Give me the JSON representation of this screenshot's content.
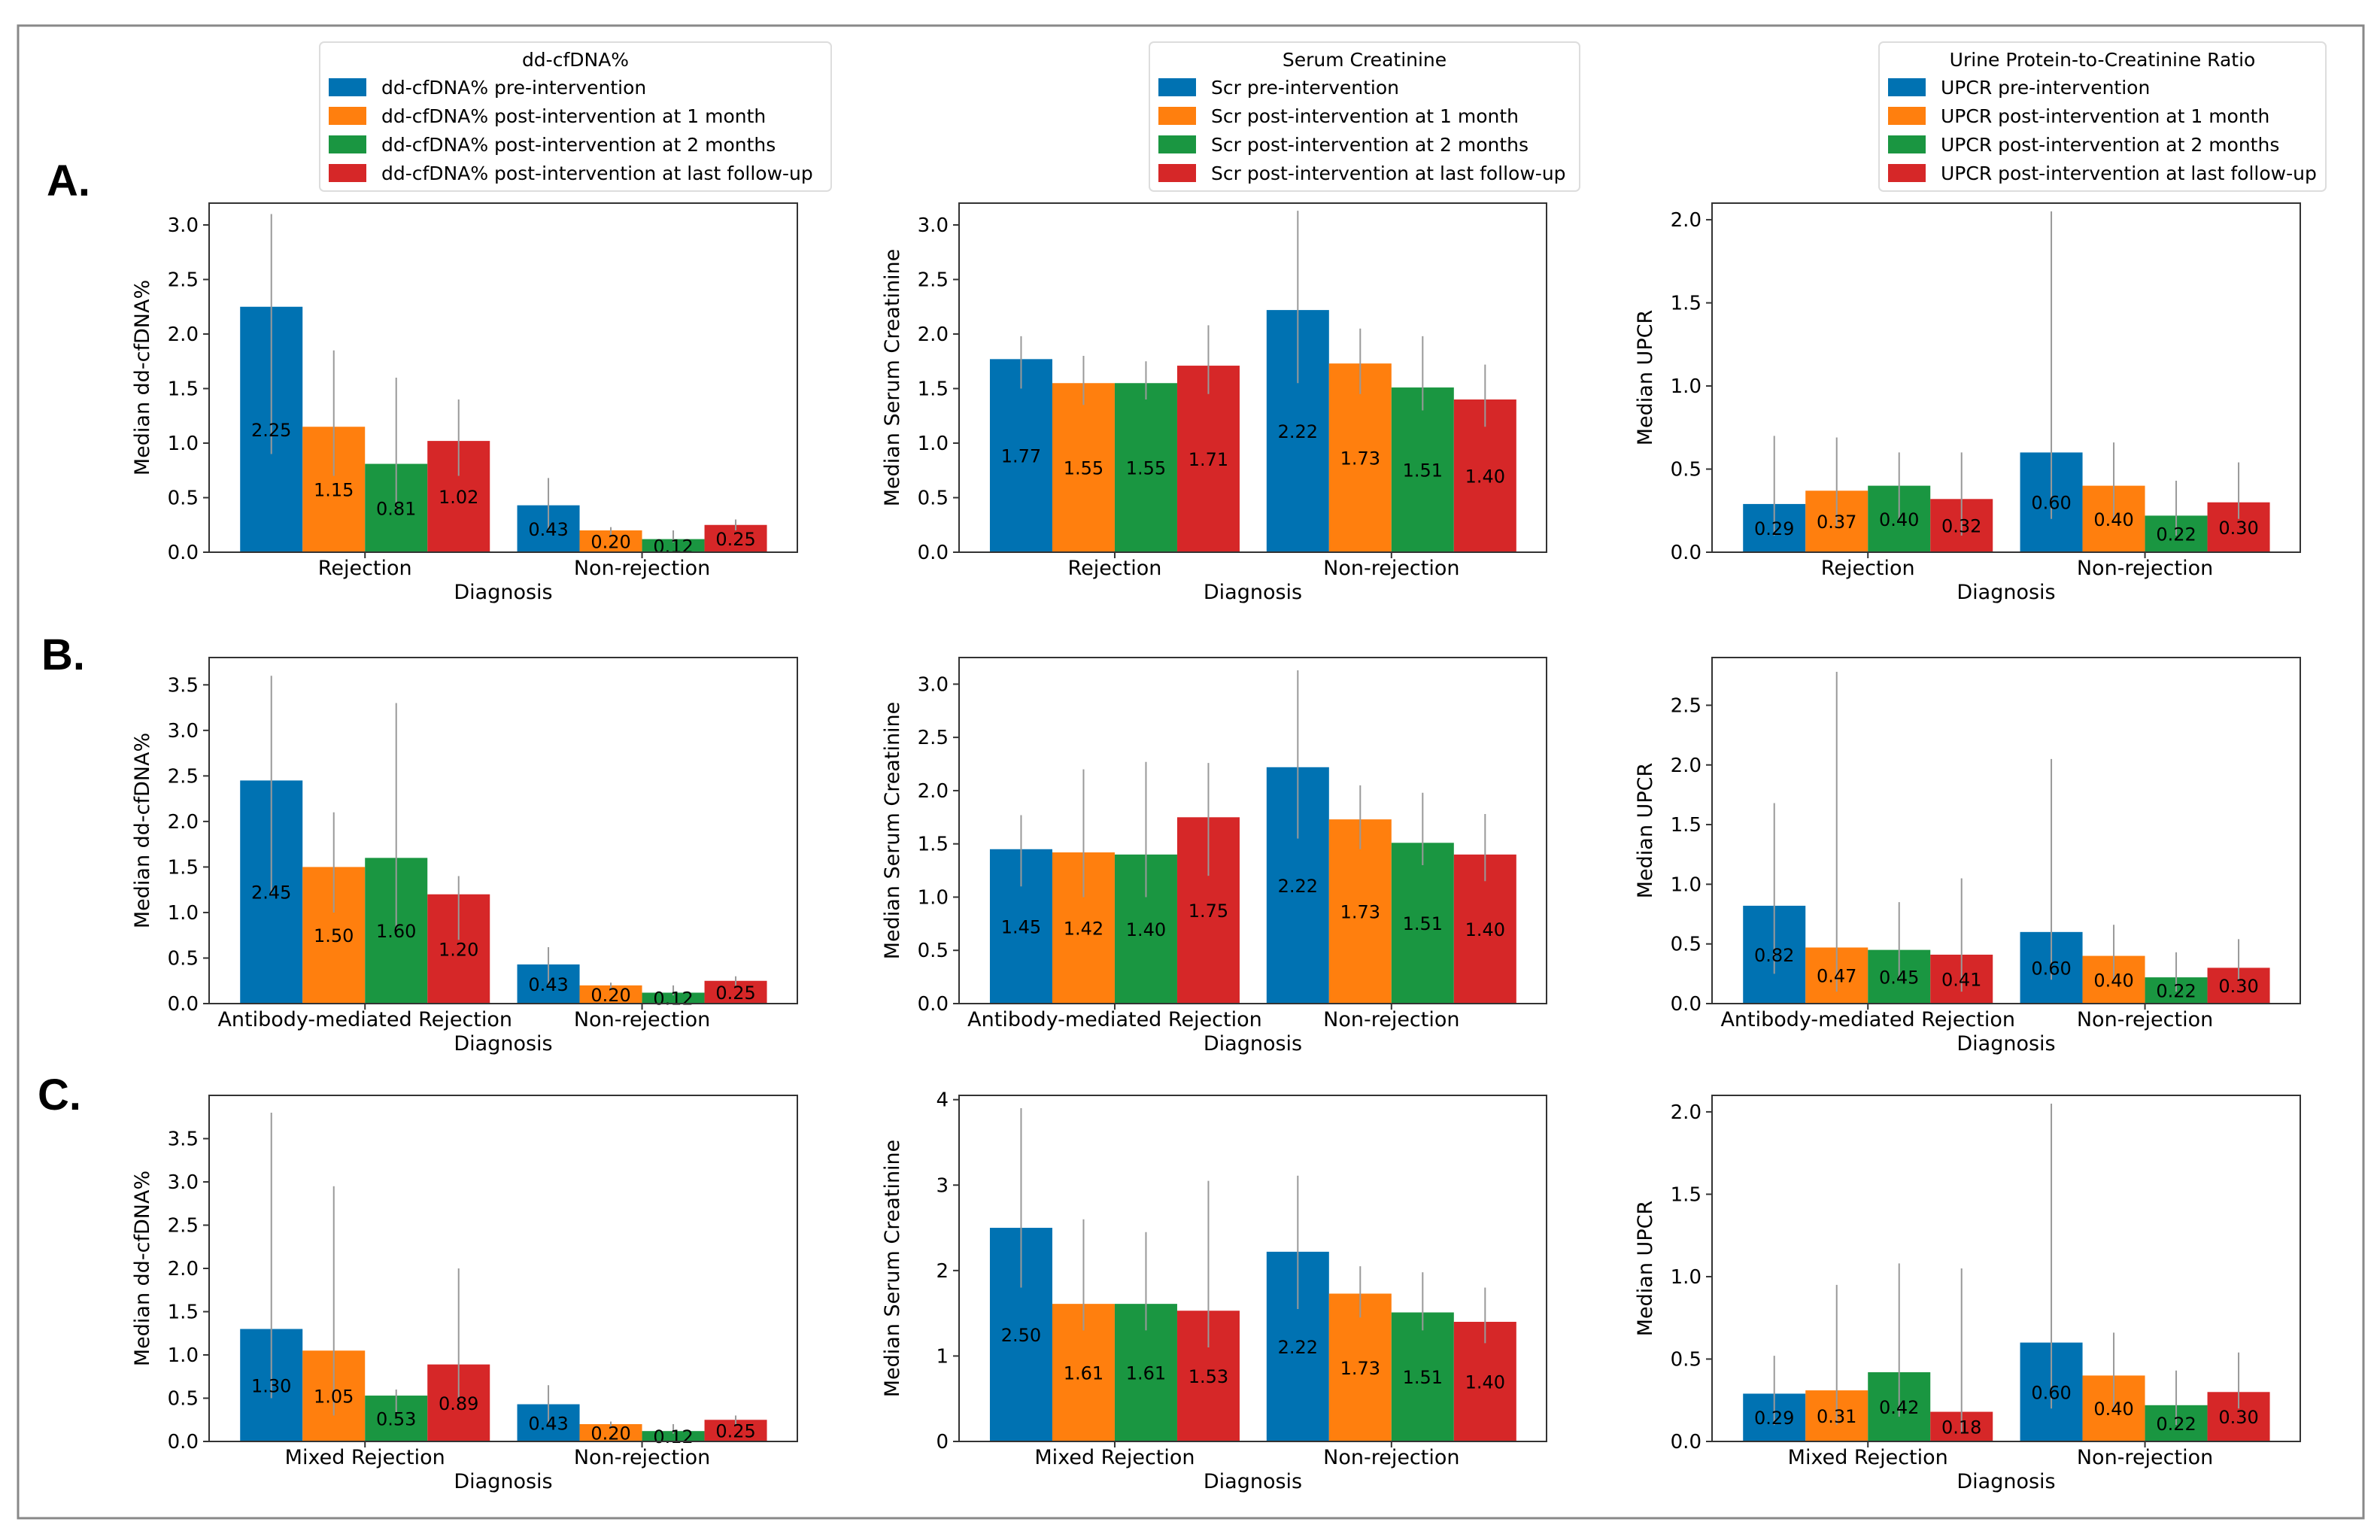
{
  "colors": {
    "pre": "#0072b2",
    "m1": "#ff7f0e",
    "m2": "#1a9641",
    "last": "#d62728",
    "errorbar": "#999999",
    "frame": "#888888"
  },
  "row_labels": [
    "A.",
    "B.",
    "C."
  ],
  "legends": [
    {
      "title": "dd-cfDNA%",
      "items": [
        "dd-cfDNA% pre-intervention",
        "dd-cfDNA% post-intervention at 1 month",
        "dd-cfDNA% post-intervention at 2 months",
        "dd-cfDNA% post-intervention at last follow-up"
      ]
    },
    {
      "title": "Serum Creatinine",
      "items": [
        "Scr pre-intervention",
        "Scr post-intervention at 1 month",
        "Scr post-intervention at 2 months",
        "Scr post-intervention at last follow-up"
      ]
    },
    {
      "title": "Urine Protein-to-Creatinine Ratio",
      "items": [
        "UPCR pre-intervention",
        "UPCR post-intervention at 1 month",
        "UPCR post-intervention at 2 months",
        "UPCR post-intervention at last follow-up"
      ]
    }
  ],
  "chart_data": [
    {
      "id": "A-cfdna",
      "type": "bar",
      "xlabel": "Diagnosis",
      "ylabel": "Median dd-cfDNA%",
      "ylim": [
        0,
        3.2
      ],
      "yticks": [
        "0.0",
        "0.5",
        "1.0",
        "1.5",
        "2.0",
        "2.5",
        "3.0"
      ],
      "categories": [
        "Rejection",
        "Non-rejection"
      ],
      "series": [
        {
          "name": "pre",
          "values": [
            2.25,
            0.43
          ],
          "labels": [
            "2.25",
            "0.43"
          ],
          "err_low": [
            0.9,
            0.2
          ],
          "err_high": [
            3.1,
            0.68
          ]
        },
        {
          "name": "1 month",
          "values": [
            1.15,
            0.2
          ],
          "labels": [
            "1.15",
            "0.20"
          ],
          "err_low": [
            0.7,
            0.15
          ],
          "err_high": [
            1.85,
            0.23
          ]
        },
        {
          "name": "2 months",
          "values": [
            0.81,
            0.12
          ],
          "labels": [
            "0.81",
            "0.12"
          ],
          "err_low": [
            0.4,
            0.09
          ],
          "err_high": [
            1.6,
            0.2
          ]
        },
        {
          "name": "last follow-up",
          "values": [
            1.02,
            0.25
          ],
          "labels": [
            "1.02",
            "0.25"
          ],
          "err_low": [
            0.7,
            0.2
          ],
          "err_high": [
            1.4,
            0.3
          ]
        }
      ]
    },
    {
      "id": "A-scr",
      "type": "bar",
      "xlabel": "Diagnosis",
      "ylabel": "Median Serum Creatinine",
      "ylim": [
        0,
        3.2
      ],
      "yticks": [
        "0.0",
        "0.5",
        "1.0",
        "1.5",
        "2.0",
        "2.5",
        "3.0"
      ],
      "categories": [
        "Rejection",
        "Non-rejection"
      ],
      "series": [
        {
          "name": "pre",
          "values": [
            1.77,
            2.22
          ],
          "labels": [
            "1.77",
            "2.22"
          ],
          "err_low": [
            1.5,
            1.55
          ],
          "err_high": [
            1.98,
            3.13
          ]
        },
        {
          "name": "1 month",
          "values": [
            1.55,
            1.73
          ],
          "labels": [
            "1.55",
            "1.73"
          ],
          "err_low": [
            1.35,
            1.45
          ],
          "err_high": [
            1.8,
            2.05
          ]
        },
        {
          "name": "2 months",
          "values": [
            1.55,
            1.51
          ],
          "labels": [
            "1.55",
            "1.51"
          ],
          "err_low": [
            1.4,
            1.3
          ],
          "err_high": [
            1.75,
            1.98
          ]
        },
        {
          "name": "last follow-up",
          "values": [
            1.71,
            1.4
          ],
          "labels": [
            "1.71",
            "1.40"
          ],
          "err_low": [
            1.45,
            1.15
          ],
          "err_high": [
            2.08,
            1.72
          ]
        }
      ]
    },
    {
      "id": "A-upcr",
      "type": "bar",
      "xlabel": "Diagnosis",
      "ylabel": "Median UPCR",
      "ylim": [
        0,
        2.1
      ],
      "yticks": [
        "0.0",
        "0.5",
        "1.0",
        "1.5",
        "2.0"
      ],
      "categories": [
        "Rejection",
        "Non-rejection"
      ],
      "series": [
        {
          "name": "pre",
          "values": [
            0.29,
            0.6
          ],
          "labels": [
            "0.29",
            "0.60"
          ],
          "err_low": [
            0.1,
            0.2
          ],
          "err_high": [
            0.7,
            2.05
          ]
        },
        {
          "name": "1 month",
          "values": [
            0.37,
            0.4
          ],
          "labels": [
            "0.37",
            "0.40"
          ],
          "err_low": [
            0.15,
            0.2
          ],
          "err_high": [
            0.69,
            0.66
          ]
        },
        {
          "name": "2 months",
          "values": [
            0.4,
            0.22
          ],
          "labels": [
            "0.40",
            "0.22"
          ],
          "err_low": [
            0.2,
            0.1
          ],
          "err_high": [
            0.6,
            0.43
          ]
        },
        {
          "name": "last follow-up",
          "values": [
            0.32,
            0.3
          ],
          "labels": [
            "0.32",
            "0.30"
          ],
          "err_low": [
            0.1,
            0.2
          ],
          "err_high": [
            0.6,
            0.54
          ]
        }
      ]
    },
    {
      "id": "B-cfdna",
      "type": "bar",
      "xlabel": "Diagnosis",
      "ylabel": "Median dd-cfDNA%",
      "ylim": [
        0,
        3.8
      ],
      "yticks": [
        "0.0",
        "0.5",
        "1.0",
        "1.5",
        "2.0",
        "2.5",
        "3.0",
        "3.5"
      ],
      "categories": [
        "Antibody-mediated Rejection",
        "Non-rejection"
      ],
      "series": [
        {
          "name": "pre",
          "values": [
            2.45,
            0.43
          ],
          "labels": [
            "2.45",
            "0.43"
          ],
          "err_low": [
            1.2,
            0.2
          ],
          "err_high": [
            3.6,
            0.62
          ]
        },
        {
          "name": "1 month",
          "values": [
            1.5,
            0.2
          ],
          "labels": [
            "1.50",
            "0.20"
          ],
          "err_low": [
            1.0,
            0.15
          ],
          "err_high": [
            2.1,
            0.23
          ]
        },
        {
          "name": "2 months",
          "values": [
            1.6,
            0.12
          ],
          "labels": [
            "1.60",
            "0.12"
          ],
          "err_low": [
            0.8,
            0.09
          ],
          "err_high": [
            3.3,
            0.2
          ]
        },
        {
          "name": "last follow-up",
          "values": [
            1.2,
            0.25
          ],
          "labels": [
            "1.20",
            "0.25"
          ],
          "err_low": [
            0.7,
            0.2
          ],
          "err_high": [
            1.4,
            0.3
          ]
        }
      ]
    },
    {
      "id": "B-scr",
      "type": "bar",
      "xlabel": "Diagnosis",
      "ylabel": "Median Serum Creatinine",
      "ylim": [
        0,
        3.25
      ],
      "yticks": [
        "0.0",
        "0.5",
        "1.0",
        "1.5",
        "2.0",
        "2.5",
        "3.0"
      ],
      "categories": [
        "Antibody-mediated Rejection",
        "Non-rejection"
      ],
      "series": [
        {
          "name": "pre",
          "values": [
            1.45,
            2.22
          ],
          "labels": [
            "1.45",
            "2.22"
          ],
          "err_low": [
            1.1,
            1.55
          ],
          "err_high": [
            1.77,
            3.13
          ]
        },
        {
          "name": "1 month",
          "values": [
            1.42,
            1.73
          ],
          "labels": [
            "1.42",
            "1.73"
          ],
          "err_low": [
            1.0,
            1.45
          ],
          "err_high": [
            2.2,
            2.05
          ]
        },
        {
          "name": "2 months",
          "values": [
            1.4,
            1.51
          ],
          "labels": [
            "1.40",
            "1.51"
          ],
          "err_low": [
            1.0,
            1.3
          ],
          "err_high": [
            2.27,
            1.98
          ]
        },
        {
          "name": "last follow-up",
          "values": [
            1.75,
            1.4
          ],
          "labels": [
            "1.75",
            "1.40"
          ],
          "err_low": [
            1.2,
            1.15
          ],
          "err_high": [
            2.26,
            1.78
          ]
        }
      ]
    },
    {
      "id": "B-upcr",
      "type": "bar",
      "xlabel": "Diagnosis",
      "ylabel": "Median UPCR",
      "ylim": [
        0,
        2.9
      ],
      "yticks": [
        "0.0",
        "0.5",
        "1.0",
        "1.5",
        "2.0",
        "2.5"
      ],
      "categories": [
        "Antibody-mediated Rejection",
        "Non-rejection"
      ],
      "series": [
        {
          "name": "pre",
          "values": [
            0.82,
            0.6
          ],
          "labels": [
            "0.82",
            "0.60"
          ],
          "err_low": [
            0.25,
            0.2
          ],
          "err_high": [
            1.68,
            2.05
          ]
        },
        {
          "name": "1 month",
          "values": [
            0.47,
            0.4
          ],
          "labels": [
            "0.47",
            "0.40"
          ],
          "err_low": [
            0.1,
            0.2
          ],
          "err_high": [
            2.78,
            0.66
          ]
        },
        {
          "name": "2 months",
          "values": [
            0.45,
            0.22
          ],
          "labels": [
            "0.45",
            "0.22"
          ],
          "err_low": [
            0.2,
            0.1
          ],
          "err_high": [
            0.85,
            0.43
          ]
        },
        {
          "name": "last follow-up",
          "values": [
            0.41,
            0.3
          ],
          "labels": [
            "0.41",
            "0.30"
          ],
          "err_low": [
            0.1,
            0.2
          ],
          "err_high": [
            1.05,
            0.54
          ]
        }
      ]
    },
    {
      "id": "C-cfdna",
      "type": "bar",
      "xlabel": "Diagnosis",
      "ylabel": "Median dd-cfDNA%",
      "ylim": [
        0,
        4.0
      ],
      "yticks": [
        "0.0",
        "0.5",
        "1.0",
        "1.5",
        "2.0",
        "2.5",
        "3.0",
        "3.5"
      ],
      "categories": [
        "Mixed Rejection",
        "Non-rejection"
      ],
      "series": [
        {
          "name": "pre",
          "values": [
            1.3,
            0.43
          ],
          "labels": [
            "1.30",
            "0.43"
          ],
          "err_low": [
            0.5,
            0.2
          ],
          "err_high": [
            3.8,
            0.65
          ]
        },
        {
          "name": "1 month",
          "values": [
            1.05,
            0.2
          ],
          "labels": [
            "1.05",
            "0.20"
          ],
          "err_low": [
            0.3,
            0.15
          ],
          "err_high": [
            2.95,
            0.23
          ]
        },
        {
          "name": "2 months",
          "values": [
            0.53,
            0.12
          ],
          "labels": [
            "0.53",
            "0.12"
          ],
          "err_low": [
            0.3,
            0.09
          ],
          "err_high": [
            0.6,
            0.2
          ]
        },
        {
          "name": "last follow-up",
          "values": [
            0.89,
            0.25
          ],
          "labels": [
            "0.89",
            "0.25"
          ],
          "err_low": [
            0.5,
            0.2
          ],
          "err_high": [
            2.0,
            0.3
          ]
        }
      ]
    },
    {
      "id": "C-scr",
      "type": "bar",
      "xlabel": "Diagnosis",
      "ylabel": "Median Serum Creatinine",
      "ylim": [
        0,
        4.05
      ],
      "yticks": [
        "0",
        "1",
        "2",
        "3",
        "4"
      ],
      "categories": [
        "Mixed Rejection",
        "Non-rejection"
      ],
      "series": [
        {
          "name": "pre",
          "values": [
            2.5,
            2.22
          ],
          "labels": [
            "2.50",
            "2.22"
          ],
          "err_low": [
            1.8,
            1.55
          ],
          "err_high": [
            3.9,
            3.11
          ]
        },
        {
          "name": "1 month",
          "values": [
            1.61,
            1.73
          ],
          "labels": [
            "1.61",
            "1.73"
          ],
          "err_low": [
            1.3,
            1.45
          ],
          "err_high": [
            2.6,
            2.05
          ]
        },
        {
          "name": "2 months",
          "values": [
            1.61,
            1.51
          ],
          "labels": [
            "1.61",
            "1.51"
          ],
          "err_low": [
            1.3,
            1.3
          ],
          "err_high": [
            2.45,
            1.98
          ]
        },
        {
          "name": "last follow-up",
          "values": [
            1.53,
            1.4
          ],
          "labels": [
            "1.53",
            "1.40"
          ],
          "err_low": [
            1.1,
            1.15
          ],
          "err_high": [
            3.05,
            1.8
          ]
        }
      ]
    },
    {
      "id": "C-upcr",
      "type": "bar",
      "xlabel": "Diagnosis",
      "ylabel": "Median UPCR",
      "ylim": [
        0,
        2.1
      ],
      "yticks": [
        "0.0",
        "0.5",
        "1.0",
        "1.5",
        "2.0"
      ],
      "categories": [
        "Mixed Rejection",
        "Non-rejection"
      ],
      "series": [
        {
          "name": "pre",
          "values": [
            0.29,
            0.6
          ],
          "labels": [
            "0.29",
            "0.60"
          ],
          "err_low": [
            0.1,
            0.2
          ],
          "err_high": [
            0.52,
            2.05
          ]
        },
        {
          "name": "1 month",
          "values": [
            0.31,
            0.4
          ],
          "labels": [
            "0.31",
            "0.40"
          ],
          "err_low": [
            0.1,
            0.2
          ],
          "err_high": [
            0.95,
            0.66
          ]
        },
        {
          "name": "2 months",
          "values": [
            0.42,
            0.22
          ],
          "labels": [
            "0.42",
            "0.22"
          ],
          "err_low": [
            0.15,
            0.1
          ],
          "err_high": [
            1.08,
            0.43
          ]
        },
        {
          "name": "last follow-up",
          "values": [
            0.18,
            0.3
          ],
          "labels": [
            "0.18",
            "0.30"
          ],
          "err_low": [
            0.05,
            0.2
          ],
          "err_high": [
            1.05,
            0.54
          ]
        }
      ]
    }
  ]
}
